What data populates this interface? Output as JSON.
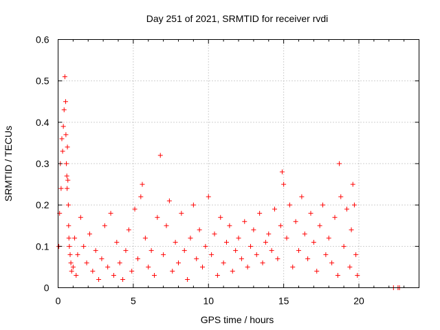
{
  "chart_data": {
    "type": "scatter",
    "title": "Day 251 of 2021, SRMTID for receiver rvdi",
    "xlabel": "GPS time / hours",
    "ylabel": "SRMTID / TECUs",
    "xlim": [
      0,
      24
    ],
    "ylim": [
      0,
      0.6
    ],
    "x_ticks": [
      0,
      5,
      10,
      15,
      20
    ],
    "x_tick_labels": [
      "0",
      "5",
      "10",
      "15",
      "20"
    ],
    "y_ticks": [
      0,
      0.1,
      0.2,
      0.3,
      0.4,
      0.5,
      0.6
    ],
    "y_tick_labels": [
      "0",
      "0.1",
      "0.2",
      "0.3",
      "0.4",
      "0.5",
      "0.6"
    ],
    "grid": true,
    "marker": "plus",
    "color": "#ff0000",
    "series": [
      {
        "name": "SRMTID",
        "x": [
          0.05,
          0.1,
          0.15,
          0.2,
          0.25,
          0.3,
          0.35,
          0.4,
          0.45,
          0.5,
          0.52,
          0.55,
          0.58,
          0.6,
          0.62,
          0.65,
          0.68,
          0.7,
          0.72,
          0.75,
          0.8,
          0.85,
          0.9,
          1.0,
          1.1,
          1.2,
          1.3,
          1.5,
          1.7,
          1.9,
          2.1,
          2.3,
          2.5,
          2.7,
          2.9,
          3.1,
          3.3,
          3.5,
          3.7,
          3.9,
          4.1,
          4.3,
          4.5,
          4.7,
          4.9,
          5.1,
          5.3,
          5.5,
          5.6,
          5.8,
          6.0,
          6.2,
          6.4,
          6.6,
          6.8,
          7.0,
          7.2,
          7.4,
          7.6,
          7.8,
          8.0,
          8.2,
          8.4,
          8.6,
          8.8,
          9.0,
          9.2,
          9.4,
          9.6,
          9.8,
          10.0,
          10.2,
          10.4,
          10.6,
          10.8,
          11.0,
          11.2,
          11.4,
          11.6,
          11.8,
          12.0,
          12.2,
          12.4,
          12.6,
          12.8,
          13.0,
          13.2,
          13.4,
          13.6,
          13.8,
          14.0,
          14.2,
          14.4,
          14.6,
          14.8,
          14.9,
          15.0,
          15.2,
          15.4,
          15.6,
          15.8,
          16.0,
          16.2,
          16.4,
          16.6,
          16.8,
          17.0,
          17.2,
          17.4,
          17.6,
          17.8,
          18.0,
          18.2,
          18.4,
          18.6,
          18.7,
          18.8,
          19.0,
          19.2,
          19.4,
          19.5,
          19.6,
          19.7,
          19.8,
          19.9,
          22.3,
          22.6,
          22.7
        ],
        "y": [
          0.1,
          0.18,
          0.3,
          0.24,
          0.36,
          0.33,
          0.39,
          0.43,
          0.51,
          0.45,
          0.37,
          0.3,
          0.27,
          0.24,
          0.34,
          0.26,
          0.2,
          0.15,
          0.12,
          0.1,
          0.08,
          0.06,
          0.04,
          0.05,
          0.12,
          0.03,
          0.08,
          0.17,
          0.1,
          0.06,
          0.13,
          0.04,
          0.09,
          0.02,
          0.07,
          0.15,
          0.05,
          0.18,
          0.03,
          0.11,
          0.06,
          0.02,
          0.09,
          0.14,
          0.04,
          0.19,
          0.07,
          0.22,
          0.25,
          0.12,
          0.05,
          0.09,
          0.03,
          0.17,
          0.32,
          0.08,
          0.15,
          0.21,
          0.04,
          0.11,
          0.06,
          0.18,
          0.09,
          0.02,
          0.12,
          0.2,
          0.07,
          0.14,
          0.05,
          0.1,
          0.22,
          0.08,
          0.13,
          0.03,
          0.17,
          0.06,
          0.11,
          0.15,
          0.04,
          0.09,
          0.12,
          0.07,
          0.16,
          0.05,
          0.1,
          0.14,
          0.08,
          0.18,
          0.06,
          0.11,
          0.13,
          0.09,
          0.19,
          0.07,
          0.15,
          0.28,
          0.25,
          0.12,
          0.2,
          0.05,
          0.16,
          0.09,
          0.22,
          0.13,
          0.07,
          0.18,
          0.11,
          0.04,
          0.15,
          0.2,
          0.08,
          0.12,
          0.06,
          0.17,
          0.03,
          0.3,
          0.22,
          0.1,
          0.19,
          0.05,
          0.14,
          0.25,
          0.2,
          0.08,
          0.03,
          0,
          0,
          0
        ]
      }
    ]
  }
}
